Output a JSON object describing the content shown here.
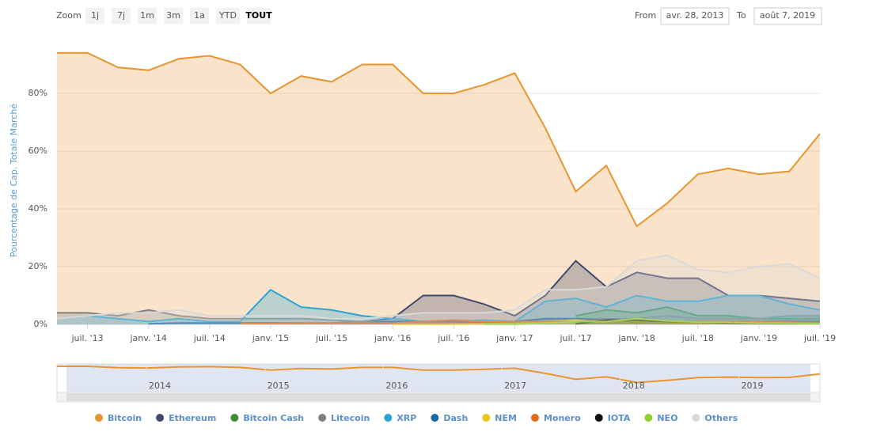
{
  "chart_data": {
    "type": "area",
    "y_axis_label": "Pourcentage de Cap. Totale Marché",
    "zoom_label": "Zoom",
    "range_buttons": [
      "1j",
      "7j",
      "1m",
      "3m",
      "1a",
      "YTD",
      "TOUT"
    ],
    "from_label": "From",
    "from_date": "avr. 28, 2013",
    "to_label": "To",
    "to_date": "août 7, 2019",
    "navigator_labels": [
      "2014",
      "2015",
      "2016",
      "2017",
      "2018",
      "2019"
    ],
    "categories": [
      null,
      "juil. '13",
      null,
      "janv. '14",
      null,
      "juil. '14",
      null,
      "janv. '15",
      null,
      "juil. '15",
      null,
      "janv. '16",
      null,
      "juil. '16",
      null,
      "janv. '17",
      null,
      "juil. '17",
      null,
      "janv. '18",
      null,
      "juil. '18",
      null,
      "janv. '19",
      null,
      "juil. '19"
    ],
    "ylim": [
      0,
      100
    ],
    "yticks": [
      {
        "value": 0,
        "label": "0%"
      },
      {
        "value": 20,
        "label": "20%"
      },
      {
        "value": 40,
        "label": "40%"
      },
      {
        "value": 60,
        "label": "60%"
      },
      {
        "value": 80,
        "label": "80%"
      }
    ],
    "grid": true,
    "legend": "bottom",
    "series": [
      {
        "name": "Bitcoin",
        "color": "#e8952f",
        "values": [
          94,
          94,
          89,
          88,
          92,
          93,
          90,
          80,
          86,
          84,
          90,
          90,
          80,
          80,
          83,
          87,
          68,
          46,
          55,
          34,
          42,
          52,
          54,
          52,
          53,
          66
        ]
      },
      {
        "name": "Ethereum",
        "color": "#434a6e",
        "values": [
          null,
          null,
          null,
          null,
          null,
          null,
          null,
          null,
          null,
          0.5,
          1,
          2,
          10,
          10,
          7,
          3,
          10,
          22,
          13,
          18,
          16,
          16,
          10,
          10,
          9,
          8
        ]
      },
      {
        "name": "Bitcoin Cash",
        "color": "#3c8d2f",
        "values": [
          null,
          null,
          null,
          null,
          null,
          null,
          null,
          null,
          null,
          null,
          null,
          null,
          null,
          null,
          null,
          null,
          null,
          3,
          5,
          4,
          6,
          3,
          3,
          2,
          2,
          2
        ]
      },
      {
        "name": "Litecoin",
        "color": "#808080",
        "values": [
          4,
          4,
          3,
          5,
          3,
          2,
          2,
          2,
          2,
          1.5,
          1,
          1,
          1,
          1,
          1,
          1,
          2,
          2,
          2,
          2,
          3,
          2,
          2,
          2,
          3,
          3
        ]
      },
      {
        "name": "XRP",
        "color": "#2aa4d5",
        "values": [
          2,
          3,
          2,
          1,
          2,
          1,
          1,
          12,
          6,
          5,
          3,
          2,
          1,
          1,
          1.5,
          1,
          8,
          9,
          6,
          10,
          8,
          8,
          10,
          10,
          7,
          5
        ]
      },
      {
        "name": "Dash",
        "color": "#1c6aa6",
        "values": [
          null,
          null,
          null,
          0.2,
          0.5,
          0.5,
          0.5,
          0.5,
          0.5,
          0.5,
          0.5,
          1,
          1,
          1,
          0.8,
          1,
          2,
          2,
          1.5,
          1.5,
          1,
          1,
          1,
          1,
          1,
          1
        ]
      },
      {
        "name": "NEM",
        "color": "#f0c419",
        "values": [
          null,
          null,
          null,
          null,
          null,
          null,
          null,
          null,
          null,
          null,
          null,
          0.1,
          0.1,
          0.1,
          0.2,
          0.2,
          1,
          1.5,
          0.8,
          1.5,
          0.5,
          0.4,
          0.3,
          0.3,
          0.2,
          0.2
        ]
      },
      {
        "name": "Monero",
        "color": "#e06c1b",
        "values": [
          null,
          null,
          null,
          null,
          null,
          null,
          0.3,
          0.3,
          0.4,
          0.5,
          0.5,
          0.5,
          1,
          1.5,
          1,
          1,
          1,
          1,
          1.5,
          1,
          1,
          1,
          1,
          1,
          0.8,
          0.6
        ]
      },
      {
        "name": "IOTA",
        "color": "#111111",
        "values": [
          null,
          null,
          null,
          null,
          null,
          null,
          null,
          null,
          null,
          null,
          null,
          null,
          null,
          null,
          null,
          null,
          null,
          0.2,
          1.5,
          1.5,
          1,
          0.8,
          0.5,
          0.4,
          0.3,
          0.3
        ]
      },
      {
        "name": "NEO",
        "color": "#8fd12a",
        "values": [
          null,
          null,
          null,
          null,
          null,
          null,
          null,
          null,
          null,
          null,
          null,
          null,
          null,
          null,
          0.1,
          0.1,
          0.5,
          1,
          1,
          2,
          1.2,
          0.8,
          0.7,
          0.5,
          0.4,
          0.3
        ]
      },
      {
        "name": "Others",
        "color": "#d9d9d9",
        "values": [
          2,
          3,
          4,
          4,
          5,
          3,
          3,
          3,
          3,
          2,
          2,
          3,
          4,
          4,
          4,
          5,
          12,
          12,
          13,
          22,
          24,
          19,
          18,
          20,
          21,
          16
        ]
      }
    ]
  }
}
